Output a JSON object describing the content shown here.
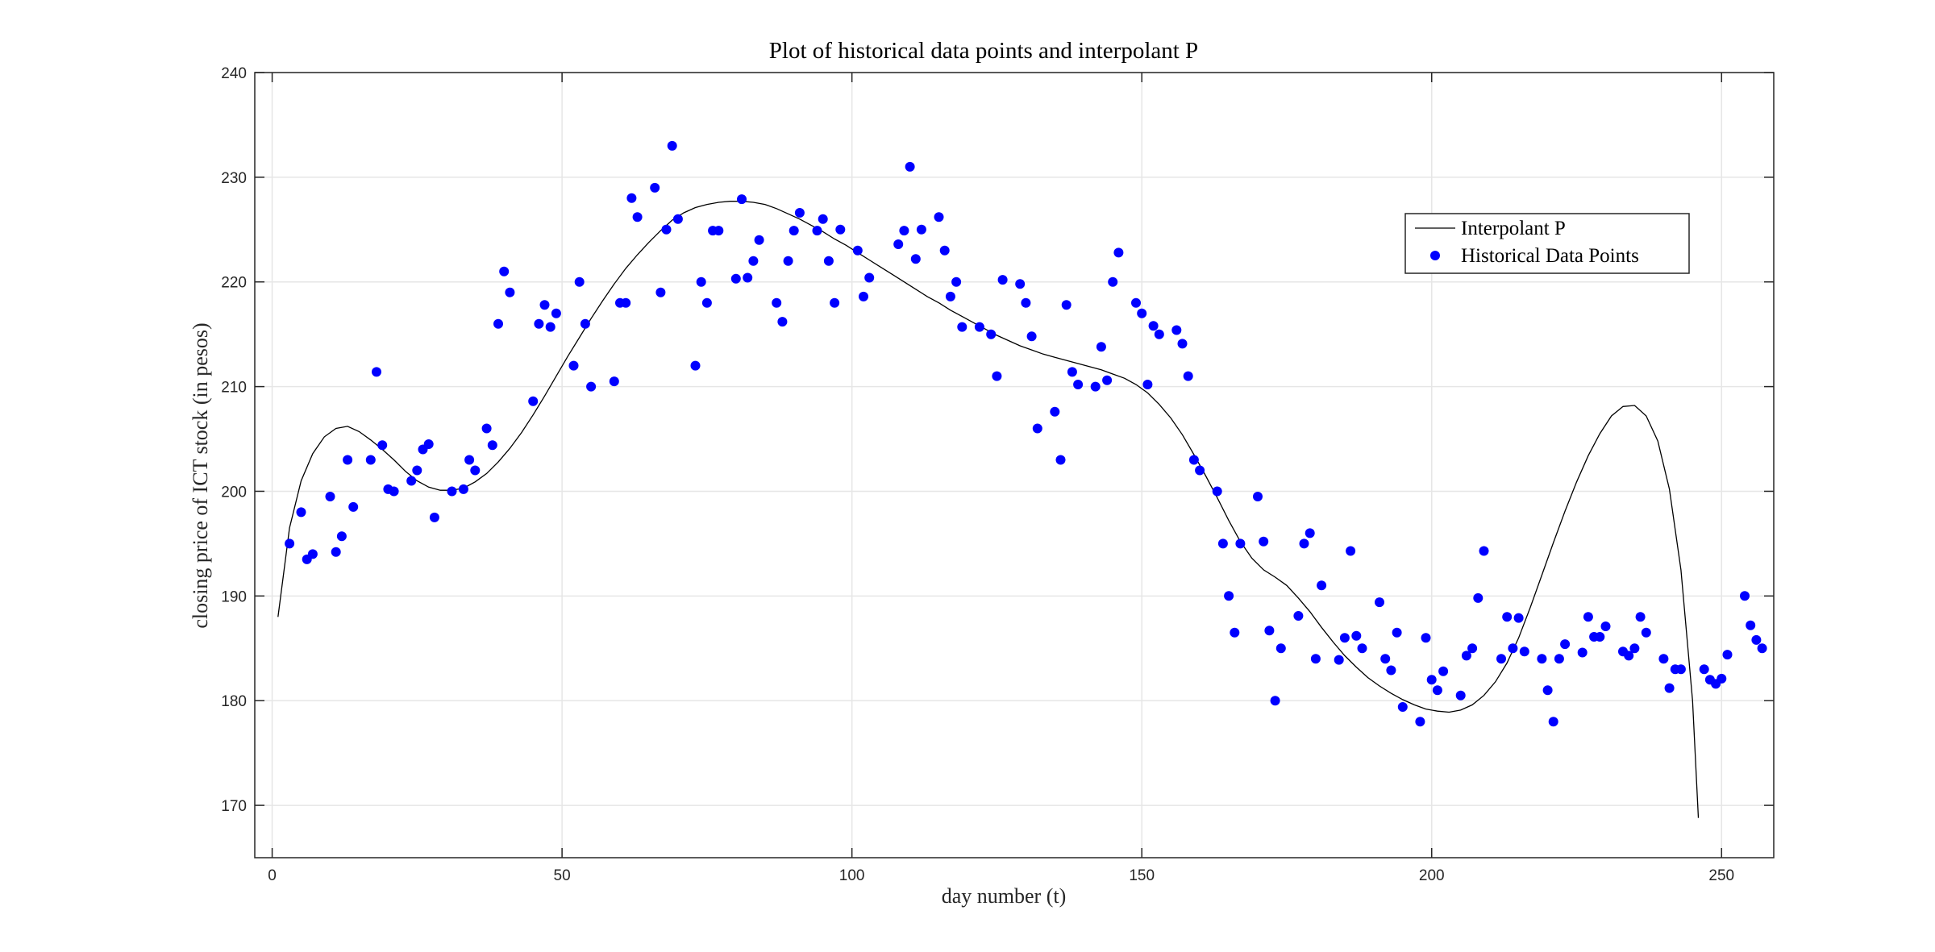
{
  "chart_data": {
    "type": "scatter",
    "title": "Plot of historical data points and interpolant P",
    "xlabel": "day number (t)",
    "ylabel": "closing price of ICT stock (in pesos)",
    "xlim": [
      -3,
      259
    ],
    "ylim": [
      165,
      240
    ],
    "xticks": [
      0,
      50,
      100,
      150,
      200,
      250
    ],
    "yticks": [
      170,
      180,
      190,
      200,
      210,
      220,
      230,
      240
    ],
    "grid": true,
    "legend_position": "top-right",
    "colors": {
      "points": "#0000ff",
      "line": "#000000",
      "grid": "#e6e6e6",
      "axis": "#262626"
    },
    "legend": [
      "Interpolant P",
      "Historical Data Points"
    ],
    "series": [
      {
        "name": "Interpolant P",
        "kind": "line",
        "points": [
          [
            1,
            188
          ],
          [
            3,
            196.5
          ],
          [
            5,
            201
          ],
          [
            7,
            203.6
          ],
          [
            9,
            205.2
          ],
          [
            11,
            206
          ],
          [
            13,
            206.2
          ],
          [
            15,
            205.7
          ],
          [
            17,
            204.9
          ],
          [
            19,
            204
          ],
          [
            21,
            203
          ],
          [
            23,
            201.9
          ],
          [
            25,
            201
          ],
          [
            27,
            200.4
          ],
          [
            29,
            200.1
          ],
          [
            31,
            200.1
          ],
          [
            33,
            200.3
          ],
          [
            35,
            200.9
          ],
          [
            37,
            201.7
          ],
          [
            39,
            202.8
          ],
          [
            41,
            204.1
          ],
          [
            43,
            205.6
          ],
          [
            45,
            207.3
          ],
          [
            47,
            209.1
          ],
          [
            49,
            211
          ],
          [
            51,
            212.9
          ],
          [
            53,
            214.7
          ],
          [
            55,
            216.5
          ],
          [
            57,
            218.2
          ],
          [
            59,
            219.8
          ],
          [
            61,
            221.3
          ],
          [
            63,
            222.6
          ],
          [
            65,
            223.8
          ],
          [
            67,
            224.9
          ],
          [
            69,
            225.9
          ],
          [
            71,
            226.6
          ],
          [
            73,
            227.1
          ],
          [
            75,
            227.4
          ],
          [
            77,
            227.6
          ],
          [
            79,
            227.7
          ],
          [
            81,
            227.7
          ],
          [
            83,
            227.6
          ],
          [
            85,
            227.4
          ],
          [
            87,
            227
          ],
          [
            89,
            226.5
          ],
          [
            91,
            226
          ],
          [
            93,
            225.4
          ],
          [
            95,
            224.8
          ],
          [
            97,
            224.1
          ],
          [
            99,
            223.5
          ],
          [
            101,
            222.8
          ],
          [
            103,
            222.1
          ],
          [
            105,
            221.4
          ],
          [
            107,
            220.7
          ],
          [
            109,
            220
          ],
          [
            111,
            219.3
          ],
          [
            113,
            218.6
          ],
          [
            115,
            218
          ],
          [
            117,
            217.3
          ],
          [
            119,
            216.7
          ],
          [
            121,
            216.1
          ],
          [
            123,
            215.5
          ],
          [
            125,
            214.9
          ],
          [
            127,
            214.4
          ],
          [
            129,
            213.9
          ],
          [
            131,
            213.5
          ],
          [
            133,
            213.1
          ],
          [
            135,
            212.8
          ],
          [
            137,
            212.5
          ],
          [
            139,
            212.2
          ],
          [
            141,
            211.9
          ],
          [
            143,
            211.6
          ],
          [
            145,
            211.2
          ],
          [
            147,
            210.8
          ],
          [
            149,
            210.2
          ],
          [
            151,
            209.4
          ],
          [
            153,
            208.3
          ],
          [
            155,
            207
          ],
          [
            157,
            205.4
          ],
          [
            159,
            203.5
          ],
          [
            161,
            201.5
          ],
          [
            163,
            199.4
          ],
          [
            165,
            197.2
          ],
          [
            167,
            195.2
          ],
          [
            169,
            193.6
          ],
          [
            171,
            192.5
          ],
          [
            173,
            191.8
          ],
          [
            175,
            191
          ],
          [
            177,
            189.8
          ],
          [
            179,
            188.5
          ],
          [
            181,
            187
          ],
          [
            183,
            185.6
          ],
          [
            185,
            184.3
          ],
          [
            187,
            183.2
          ],
          [
            189,
            182.2
          ],
          [
            191,
            181.4
          ],
          [
            193,
            180.7
          ],
          [
            195,
            180.1
          ],
          [
            197,
            179.6
          ],
          [
            199,
            179.2
          ],
          [
            201,
            179
          ],
          [
            203,
            178.9
          ],
          [
            205,
            179.1
          ],
          [
            207,
            179.6
          ],
          [
            209,
            180.5
          ],
          [
            211,
            181.8
          ],
          [
            213,
            183.6
          ],
          [
            215,
            186
          ],
          [
            217,
            188.9
          ],
          [
            219,
            192
          ],
          [
            221,
            195.1
          ],
          [
            223,
            198.1
          ],
          [
            225,
            200.9
          ],
          [
            227,
            203.4
          ],
          [
            229,
            205.5
          ],
          [
            231,
            207.2
          ],
          [
            233,
            208.1
          ],
          [
            235,
            208.2
          ],
          [
            237,
            207.2
          ],
          [
            239,
            204.8
          ],
          [
            241,
            200.2
          ],
          [
            243,
            192.5
          ],
          [
            245,
            180
          ],
          [
            246,
            168.8
          ]
        ]
      },
      {
        "name": "Historical Data Points",
        "kind": "scatter",
        "points": [
          [
            3,
            195
          ],
          [
            5,
            198
          ],
          [
            6,
            193.5
          ],
          [
            7,
            194
          ],
          [
            10,
            199.5
          ],
          [
            11,
            194.2
          ],
          [
            12,
            195.7
          ],
          [
            13,
            203
          ],
          [
            14,
            198.5
          ],
          [
            17,
            203
          ],
          [
            18,
            211.4
          ],
          [
            19,
            204.4
          ],
          [
            20,
            200.2
          ],
          [
            21,
            200
          ],
          [
            24,
            201
          ],
          [
            25,
            202
          ],
          [
            26,
            204
          ],
          [
            27,
            204.5
          ],
          [
            28,
            197.5
          ],
          [
            31,
            200
          ],
          [
            33,
            200.2
          ],
          [
            34,
            203
          ],
          [
            35,
            202
          ],
          [
            37,
            206
          ],
          [
            38,
            204.4
          ],
          [
            39,
            216
          ],
          [
            40,
            221
          ],
          [
            41,
            219
          ],
          [
            45,
            208.6
          ],
          [
            46,
            216
          ],
          [
            47,
            217.8
          ],
          [
            48,
            215.7
          ],
          [
            49,
            217
          ],
          [
            52,
            212
          ],
          [
            53,
            220
          ],
          [
            54,
            216
          ],
          [
            55,
            210
          ],
          [
            59,
            210.5
          ],
          [
            60,
            218
          ],
          [
            61,
            218
          ],
          [
            62,
            228
          ],
          [
            63,
            226.2
          ],
          [
            66,
            229
          ],
          [
            67,
            219
          ],
          [
            68,
            225
          ],
          [
            69,
            233
          ],
          [
            70,
            226
          ],
          [
            73,
            212
          ],
          [
            74,
            220
          ],
          [
            75,
            218
          ],
          [
            76,
            224.9
          ],
          [
            77,
            224.9
          ],
          [
            80,
            220.3
          ],
          [
            81,
            227.9
          ],
          [
            82,
            220.4
          ],
          [
            83,
            222
          ],
          [
            84,
            224
          ],
          [
            87,
            218
          ],
          [
            88,
            216.2
          ],
          [
            89,
            222
          ],
          [
            90,
            224.9
          ],
          [
            91,
            226.6
          ],
          [
            94,
            224.9
          ],
          [
            95,
            226
          ],
          [
            96,
            222
          ],
          [
            97,
            218
          ],
          [
            98,
            225
          ],
          [
            101,
            223
          ],
          [
            102,
            218.6
          ],
          [
            103,
            220.4
          ],
          [
            108,
            223.6
          ],
          [
            109,
            224.9
          ],
          [
            110,
            231
          ],
          [
            111,
            222.2
          ],
          [
            112,
            225
          ],
          [
            115,
            226.2
          ],
          [
            116,
            223
          ],
          [
            117,
            218.6
          ],
          [
            118,
            220
          ],
          [
            119,
            215.7
          ],
          [
            122,
            215.7
          ],
          [
            124,
            215
          ],
          [
            125,
            211
          ],
          [
            126,
            220.2
          ],
          [
            129,
            219.8
          ],
          [
            130,
            218
          ],
          [
            131,
            214.8
          ],
          [
            132,
            206
          ],
          [
            135,
            207.6
          ],
          [
            136,
            203
          ],
          [
            137,
            217.8
          ],
          [
            138,
            211.4
          ],
          [
            139,
            210.2
          ],
          [
            142,
            210
          ],
          [
            143,
            213.8
          ],
          [
            144,
            210.6
          ],
          [
            145,
            220
          ],
          [
            146,
            222.8
          ],
          [
            149,
            218
          ],
          [
            150,
            217
          ],
          [
            151,
            210.2
          ],
          [
            152,
            215.8
          ],
          [
            153,
            215
          ],
          [
            156,
            215.4
          ],
          [
            157,
            214.1
          ],
          [
            158,
            211
          ],
          [
            159,
            203
          ],
          [
            160,
            202
          ],
          [
            163,
            200
          ],
          [
            164,
            195
          ],
          [
            165,
            190
          ],
          [
            166,
            186.5
          ],
          [
            167,
            195
          ],
          [
            170,
            199.5
          ],
          [
            171,
            195.2
          ],
          [
            172,
            186.7
          ],
          [
            173,
            180
          ],
          [
            174,
            185
          ],
          [
            177,
            188.1
          ],
          [
            178,
            195
          ],
          [
            179,
            196
          ],
          [
            180,
            184
          ],
          [
            181,
            191
          ],
          [
            184,
            183.9
          ],
          [
            185,
            186
          ],
          [
            186,
            194.3
          ],
          [
            187,
            186.2
          ],
          [
            188,
            185
          ],
          [
            191,
            189.4
          ],
          [
            192,
            184
          ],
          [
            193,
            182.9
          ],
          [
            194,
            186.5
          ],
          [
            195,
            179.4
          ],
          [
            198,
            178
          ],
          [
            199,
            186
          ],
          [
            200,
            182
          ],
          [
            201,
            181
          ],
          [
            202,
            182.8
          ],
          [
            205,
            180.5
          ],
          [
            206,
            184.3
          ],
          [
            207,
            185
          ],
          [
            208,
            189.8
          ],
          [
            209,
            194.3
          ],
          [
            212,
            184
          ],
          [
            213,
            188
          ],
          [
            214,
            185
          ],
          [
            215,
            187.9
          ],
          [
            216,
            184.7
          ],
          [
            219,
            184
          ],
          [
            220,
            181
          ],
          [
            221,
            178
          ],
          [
            222,
            184
          ],
          [
            223,
            185.4
          ],
          [
            226,
            184.6
          ],
          [
            227,
            188
          ],
          [
            228,
            186.1
          ],
          [
            229,
            186.1
          ],
          [
            230,
            187.1
          ],
          [
            233,
            184.7
          ],
          [
            234,
            184.3
          ],
          [
            235,
            185
          ],
          [
            236,
            188
          ],
          [
            237,
            186.5
          ],
          [
            240,
            184
          ],
          [
            241,
            181.2
          ],
          [
            242,
            183
          ],
          [
            243,
            183
          ],
          [
            247,
            183
          ],
          [
            248,
            182
          ],
          [
            249,
            181.6
          ],
          [
            250,
            182.1
          ],
          [
            251,
            184.4
          ],
          [
            254,
            190
          ],
          [
            255,
            187.2
          ],
          [
            256,
            185.8
          ],
          [
            257,
            185
          ]
        ]
      }
    ]
  }
}
